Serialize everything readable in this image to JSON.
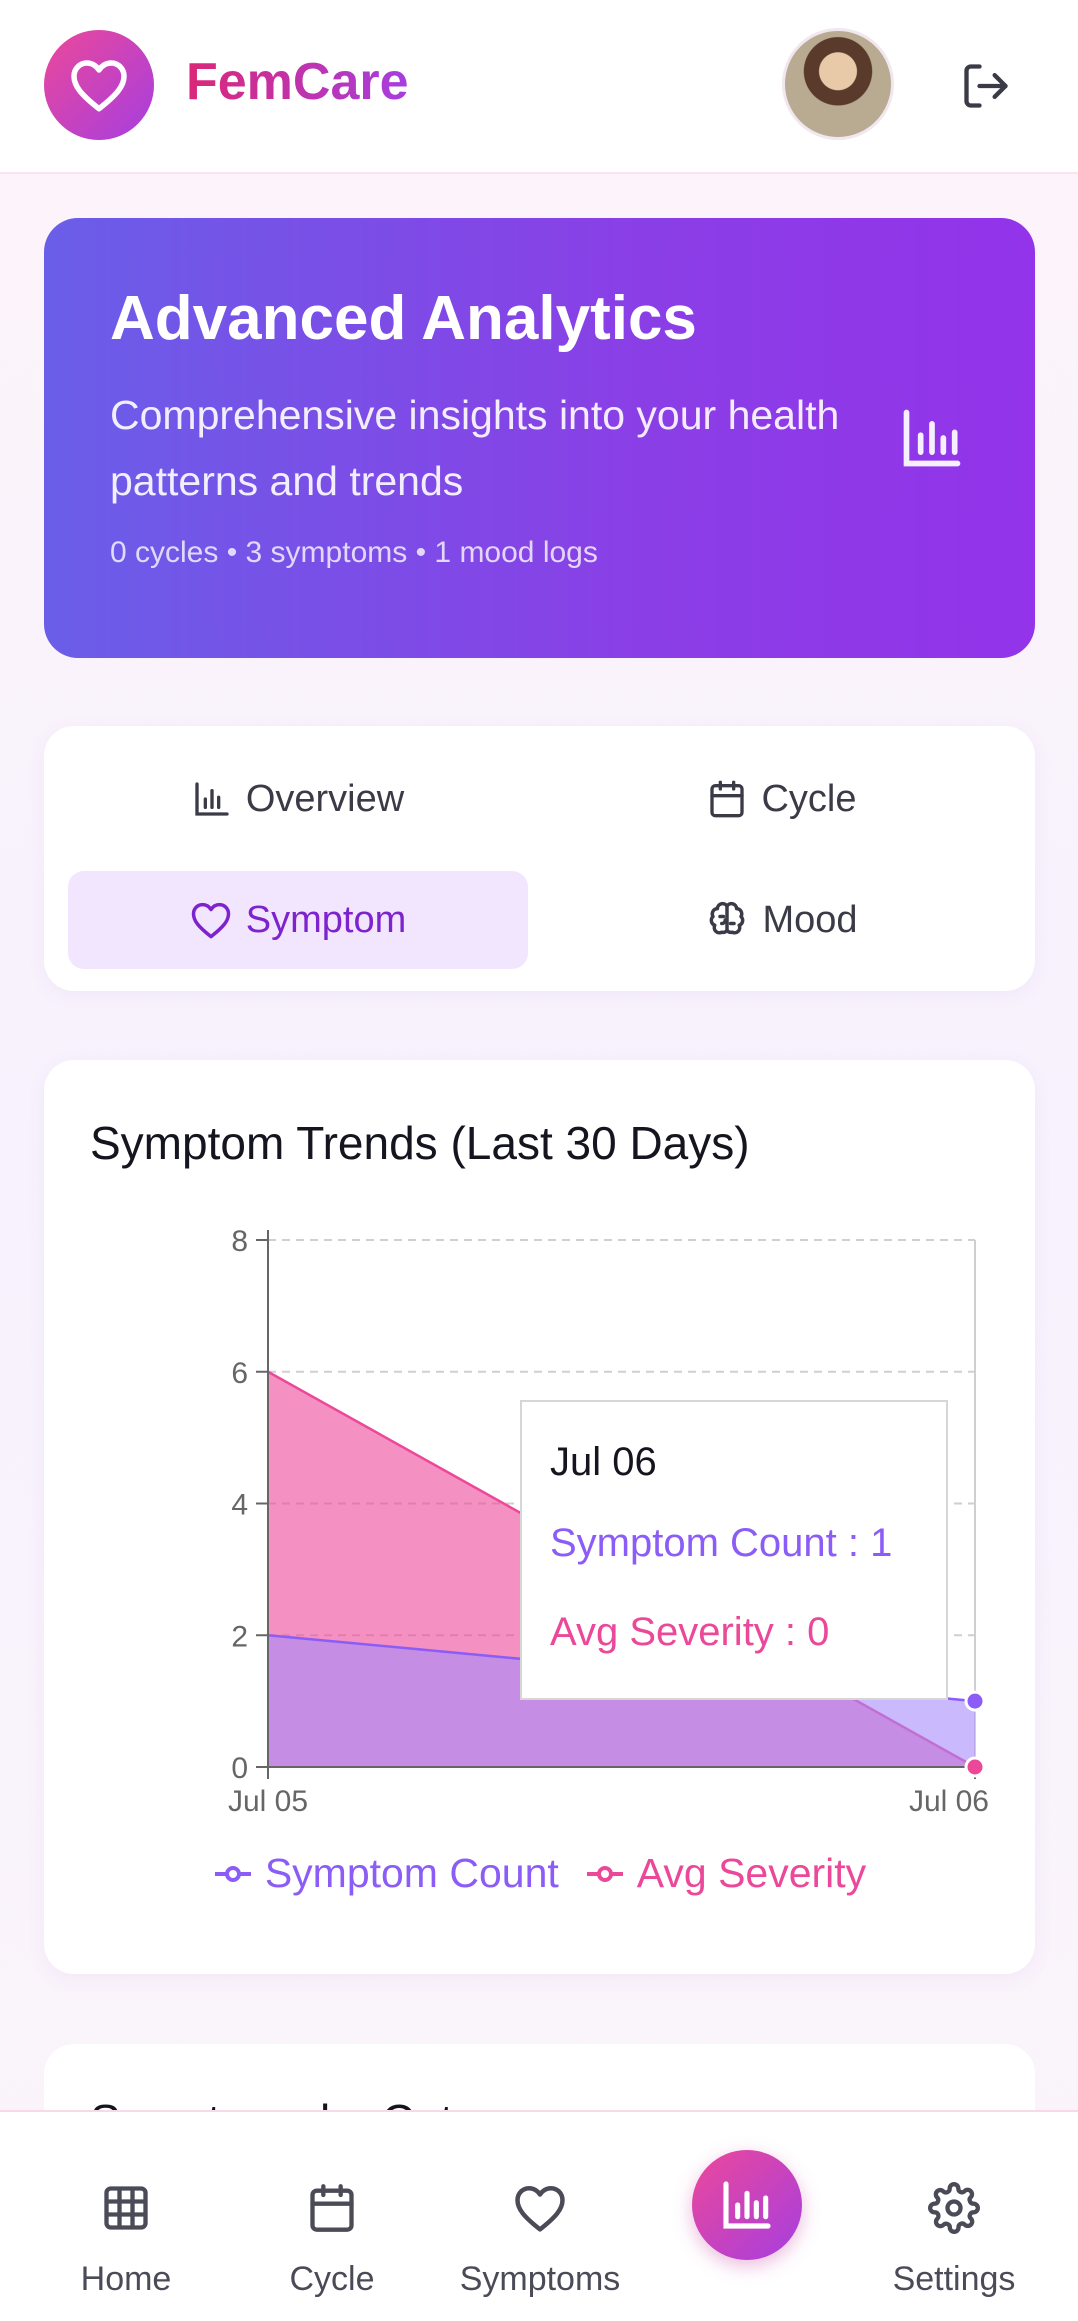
{
  "app": {
    "name": "FemCare"
  },
  "hero": {
    "title": "Advanced Analytics",
    "description": "Comprehensive insights into your health patterns and trends",
    "stats": "0 cycles • 3 symptoms • 1 mood logs"
  },
  "tabs": [
    {
      "label": "Overview",
      "active": false
    },
    {
      "label": "Cycle",
      "active": false
    },
    {
      "label": "Symptom",
      "active": true
    },
    {
      "label": "Mood",
      "active": false
    }
  ],
  "chart_card": {
    "title": "Symptom Trends (Last 30 Days)",
    "tooltip": {
      "date": "Jul 06",
      "count_label": "Symptom Count : 1",
      "severity_label": "Avg Severity : 0"
    }
  },
  "chart_data": {
    "type": "area",
    "title": "Symptom Trends (Last 30 Days)",
    "x": [
      "Jul 05",
      "Jul 06"
    ],
    "series": [
      {
        "name": "Symptom Count",
        "values": [
          2,
          1
        ],
        "color": "#a78bfa"
      },
      {
        "name": "Avg Severity",
        "values": [
          6,
          0
        ],
        "color": "#ec4899"
      }
    ],
    "ylim": [
      0,
      8
    ],
    "yticks": [
      0,
      2,
      4,
      6,
      8
    ],
    "grid": true,
    "legend": "bottom-center"
  },
  "next_card": {
    "title": "Symptoms by Category"
  },
  "bottom_nav": [
    {
      "label": "Home",
      "icon": "grid-icon"
    },
    {
      "label": "Cycle",
      "icon": "calendar-icon"
    },
    {
      "label": "Symptoms",
      "icon": "heart-icon"
    },
    {
      "label": "",
      "icon": "bar-chart-icon",
      "active": true
    },
    {
      "label": "Settings",
      "icon": "gear-icon"
    }
  ],
  "colors": {
    "brand_pink": "#ec4899",
    "brand_purple": "#a63ee0",
    "hero_start": "#6a5ee8",
    "hero_end": "#9333ea",
    "active_tab_bg": "#f1e6fd"
  }
}
